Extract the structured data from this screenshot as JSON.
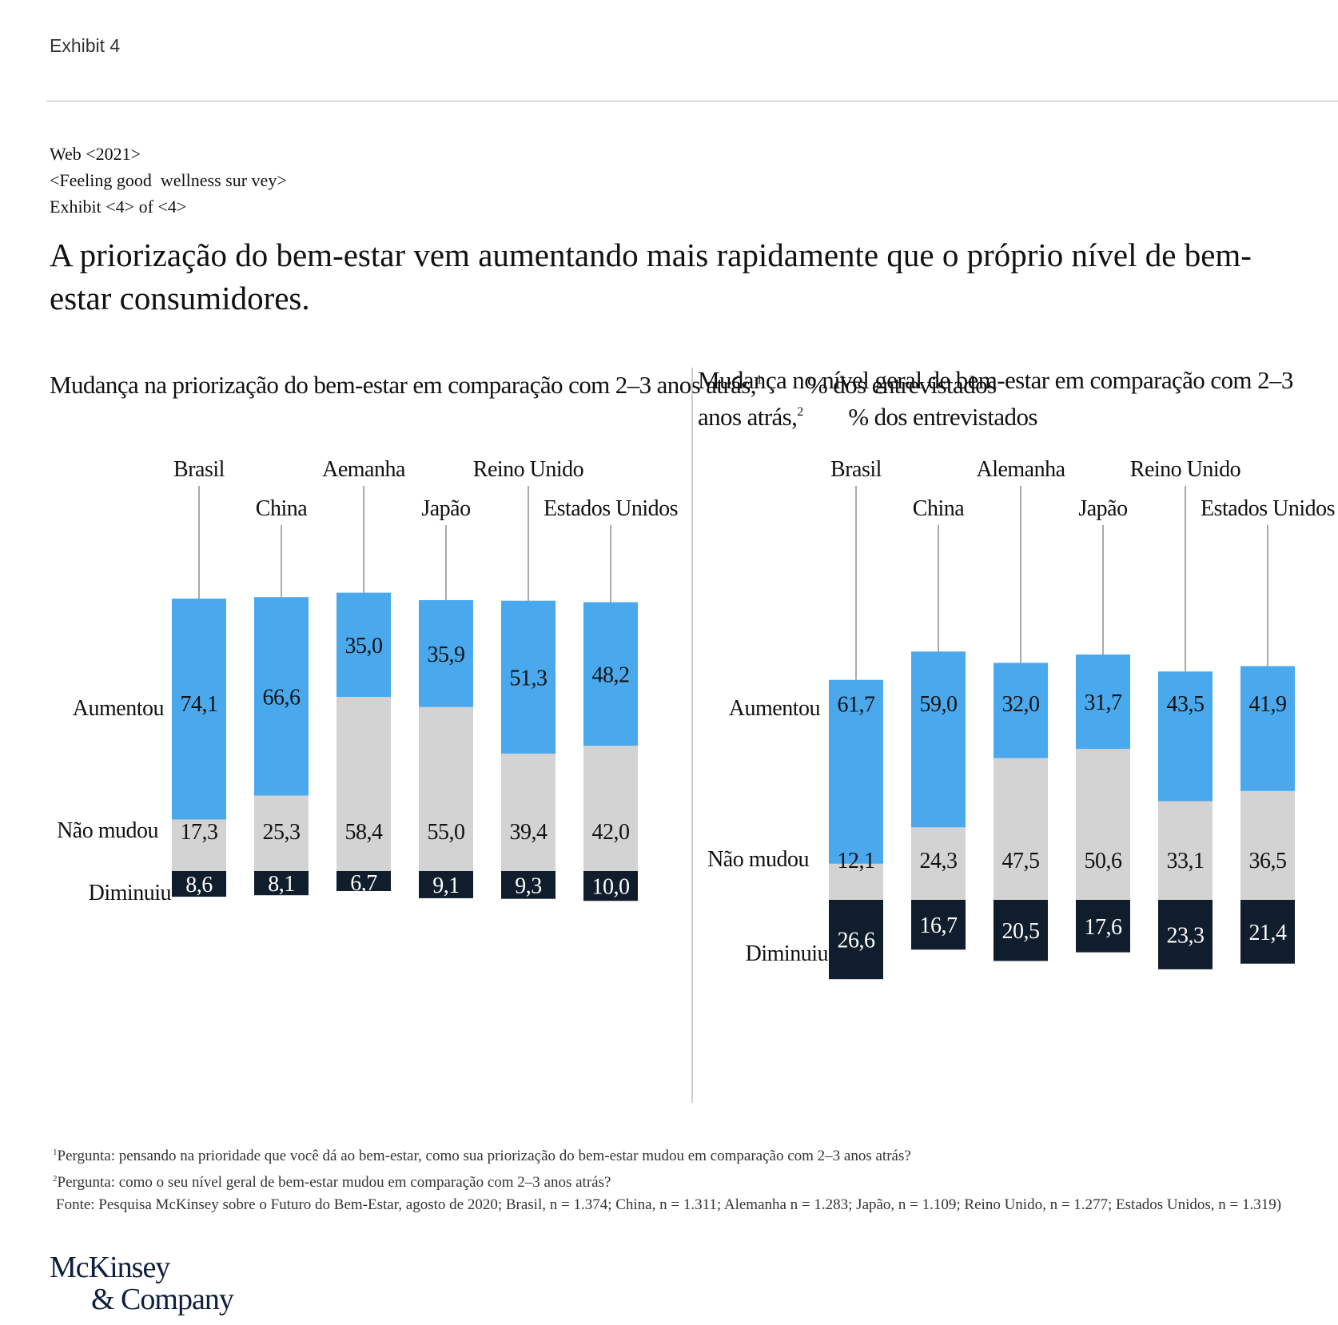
{
  "header": {
    "exhibit_label": "Exhibit 4",
    "meta_lines": [
      "Web <2021>",
      "<Feeling good  wellness sur vey>",
      "Exhibit <4> of <4>"
    ],
    "title": "A priorização do bem-estar vem aumentando mais rapidamente que o próprio nível de bem-estar consumidores."
  },
  "colors": {
    "aumentou": "#4aa8ec",
    "nao_mudou": "#d3d3d3",
    "diminuiu": "#0f1d2d",
    "divider": "#bdbdbd",
    "leader": "#555555"
  },
  "chart_data": [
    {
      "type": "bar",
      "stacked": true,
      "title": "Mudança na priorização do bem-estar em comparação com 2–3 anos atrás,",
      "title_footnote": "1",
      "unit": "% dos entrevistados",
      "categories": [
        "Brasil",
        "China",
        "Aemanha",
        "Japão",
        "Reino Unido",
        "Estados  Unidos"
      ],
      "series": [
        {
          "name": "Aumentou",
          "values": [
            74.1,
            66.6,
            35.0,
            35.9,
            51.3,
            48.2
          ],
          "labels": [
            "74,1",
            "66,6",
            "35,0",
            "35,9",
            "51,3",
            "48,2"
          ]
        },
        {
          "name": "Não mudou",
          "values": [
            17.3,
            25.3,
            58.4,
            55.0,
            39.4,
            42.0
          ],
          "labels": [
            "17,3",
            "25,3",
            "58,4",
            "55,0",
            "39,4",
            "42,0"
          ]
        },
        {
          "name": "Diminuiu",
          "values": [
            8.6,
            8.1,
            6.7,
            9.1,
            9.3,
            10.0
          ],
          "labels": [
            "8,6",
            "8,1",
            "6,7",
            "9,1",
            "9,3",
            "10,0"
          ]
        }
      ]
    },
    {
      "type": "bar",
      "stacked": true,
      "title": "Mudança no nível geral de bem-estar em comparação com 2–3 anos atrás,",
      "title_footnote": "2",
      "unit": "% dos entrevistados",
      "categories": [
        "Brasil",
        "China",
        "Alemanha",
        "Japão",
        "Reino Unido",
        "Estados  Unidos"
      ],
      "series": [
        {
          "name": "Aumentou",
          "values": [
            61.7,
            59.0,
            32.0,
            31.7,
            43.5,
            41.9
          ],
          "labels": [
            "61,7",
            "59,0",
            "32,0",
            "31,7",
            "43,5",
            "41,9"
          ]
        },
        {
          "name": "Não mudou",
          "values": [
            12.1,
            24.3,
            47.5,
            50.6,
            33.1,
            36.5
          ],
          "labels": [
            "12,1",
            "24,3",
            "47,5",
            "50,6",
            "33,1",
            "36,5"
          ]
        },
        {
          "name": "Diminuiu",
          "values": [
            26.6,
            16.7,
            20.5,
            17.6,
            23.3,
            21.4
          ],
          "labels": [
            "26,6",
            "16,7",
            "20,5",
            "17,6",
            "23,3",
            "21,4"
          ]
        }
      ]
    }
  ],
  "footnotes": {
    "fn1_marker": "1",
    "fn1": "Pergunta: pensando na prioridade que você dá ao bem-estar, como sua priorização do bem-estar mudou em comparação com 2–3 anos atrás?",
    "fn2_marker": "2",
    "fn2": "Pergunta: como o seu nível geral de bem-estar mudou em comparação com 2–3 anos atrás?",
    "source": "Fonte: Pesquisa McKinsey sobre o Futuro do Bem-Estar, agosto de 2020; Brasil, n = 1.374; China, n = 1.311; Alemanha n = 1.283; Japão, n = 1.109; Reino Unido, n = 1.277; Estados Unidos, n = 1.319)"
  },
  "logo": {
    "line1": "McKinsey",
    "line2": "& Company"
  }
}
